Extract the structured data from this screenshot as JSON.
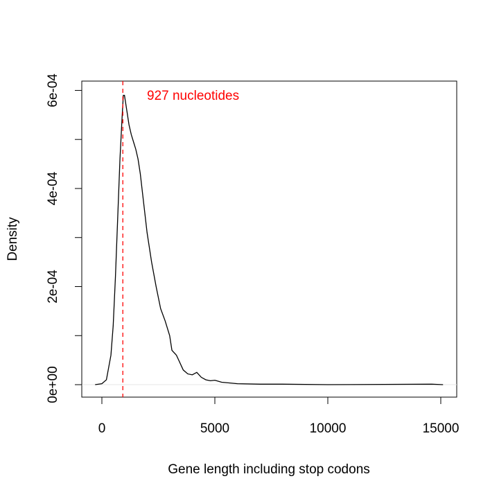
{
  "chart_data": {
    "type": "line",
    "xlabel": "Gene length including stop codons",
    "ylabel": "Density",
    "x": [
      -300,
      0,
      200,
      400,
      500,
      600,
      700,
      800,
      900,
      950,
      1000,
      1100,
      1200,
      1300,
      1400,
      1500,
      1600,
      1700,
      1800,
      1900,
      2000,
      2200,
      2400,
      2600,
      2800,
      3000,
      3100,
      3300,
      3400,
      3600,
      3800,
      4000,
      4200,
      4400,
      4600,
      4800,
      5000,
      5300,
      6000,
      7000,
      8000,
      10000,
      14600,
      15100
    ],
    "series": [
      {
        "color": "#000000",
        "values": [
          0,
          2e-06,
          1e-05,
          6e-05,
          0.00012,
          0.00022,
          0.00034,
          0.00046,
          0.00055,
          0.00059,
          0.00059,
          0.00056,
          0.00053,
          0.00051,
          0.000495,
          0.00048,
          0.00046,
          0.00043,
          0.00039,
          0.00035,
          0.00031,
          0.00025,
          0.0002,
          0.000155,
          0.00013,
          0.0001,
          7e-05,
          6e-05,
          5e-05,
          3e-05,
          2.2e-05,
          2e-05,
          2.5e-05,
          1.5e-05,
          1e-05,
          8e-06,
          9e-06,
          5e-06,
          2e-06,
          1e-06,
          1e-06,
          0,
          1e-06,
          0
        ]
      }
    ],
    "xlim": [
      -890,
      15706
    ],
    "ylim": [
      -2.54e-05,
      0.000619
    ],
    "xticks": [
      0,
      5000,
      10000,
      15000
    ],
    "yticks": [
      {
        "value": 0,
        "label": "0e+00"
      },
      {
        "value": 0.0001,
        "label": null
      },
      {
        "value": 0.0002,
        "label": "2e-04"
      },
      {
        "value": 0.0003,
        "label": null
      },
      {
        "value": 0.0004,
        "label": "4e-04"
      },
      {
        "value": 0.0005,
        "label": null
      },
      {
        "value": 0.0006,
        "label": "6e-04"
      }
    ],
    "zero_line_color": "#e6e6e6",
    "vline": {
      "x": 927,
      "color": "#ff0000"
    },
    "annotation": {
      "text": "927 nucleotides",
      "color": "#ff0000"
    }
  }
}
